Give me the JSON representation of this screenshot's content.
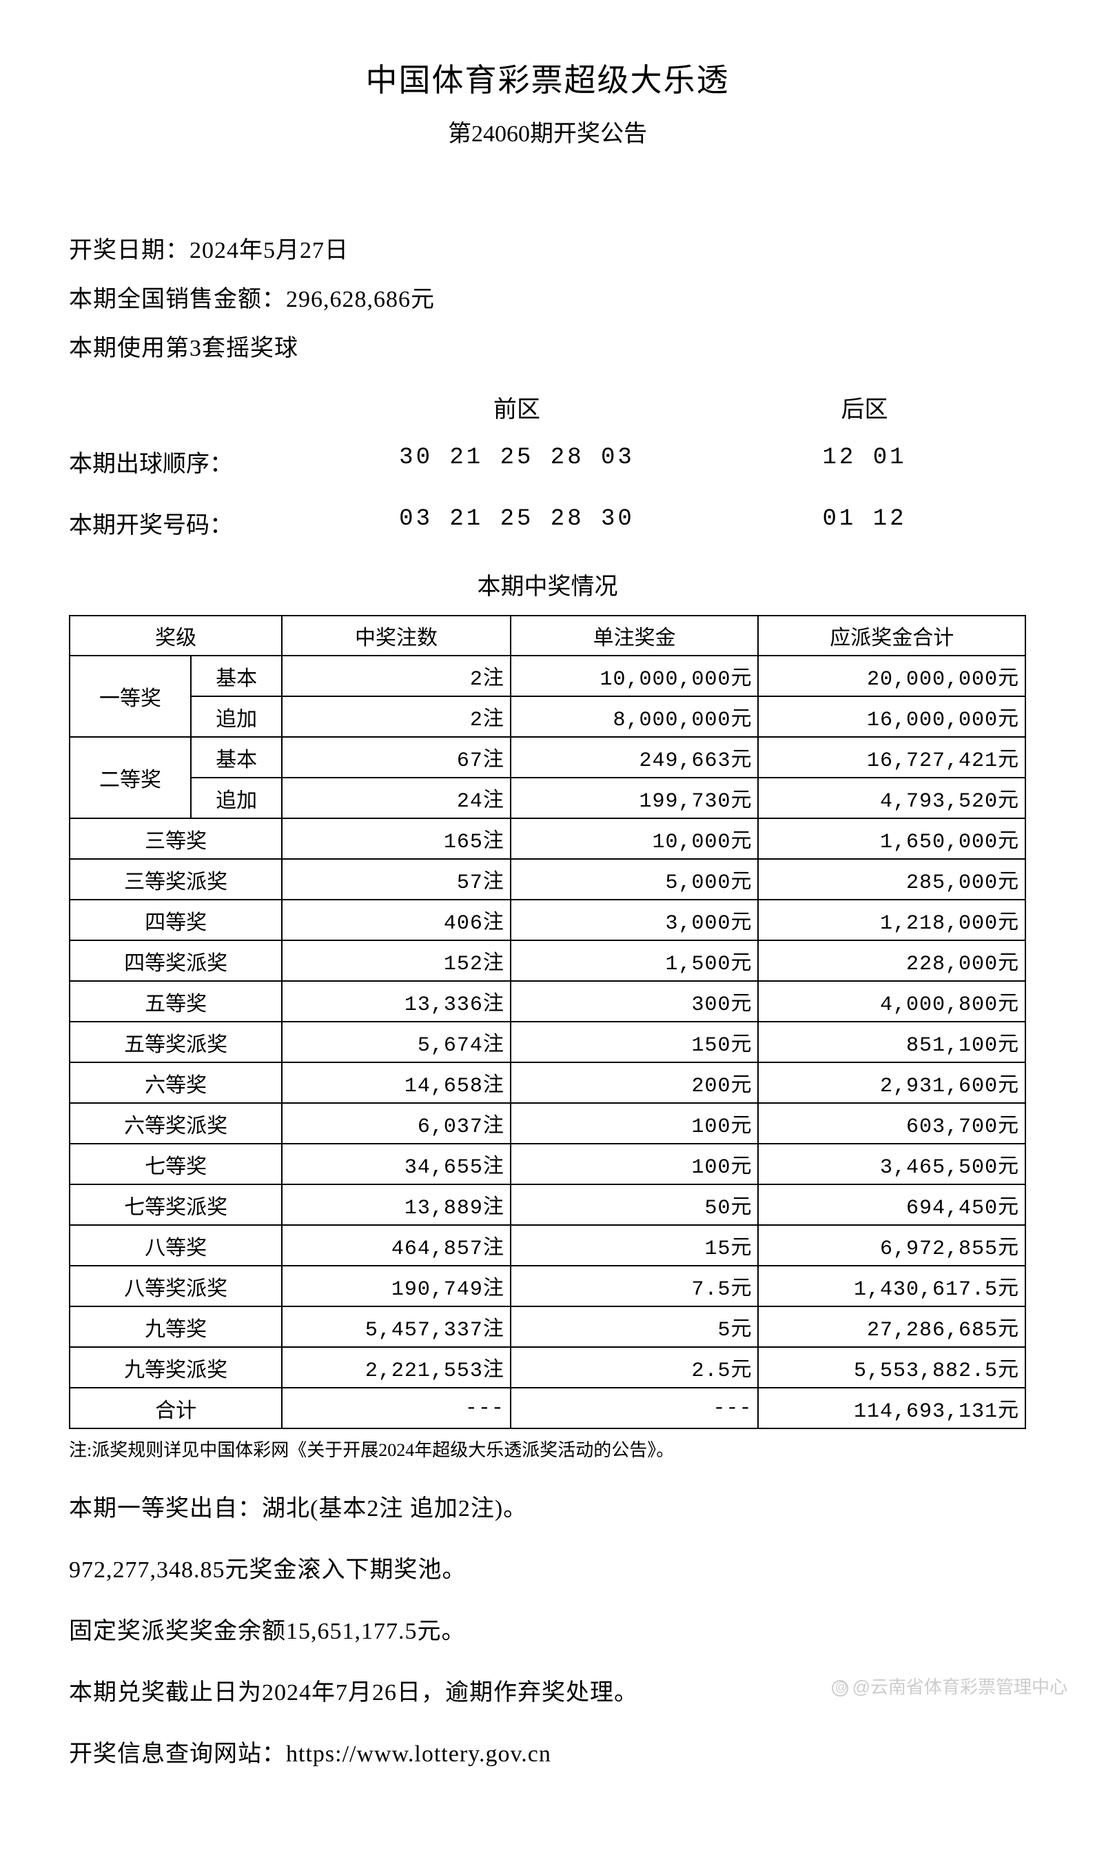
{
  "header": {
    "title": "中国体育彩票超级大乐透",
    "subtitle": "第24060期开奖公告"
  },
  "info": {
    "draw_date_label": "开奖日期：",
    "draw_date": "2024年5月27日",
    "sales_label": "本期全国销售金额：",
    "sales_amount": "296,628,686元",
    "ball_set_label": "本期使用第3套摇奖球"
  },
  "numbers": {
    "front_label": "前区",
    "back_label": "后区",
    "draw_order_label": "本期出球顺序：",
    "draw_order_front": "30 21 25 28 03",
    "draw_order_back": "12 01",
    "winning_label": "本期开奖号码：",
    "winning_front": "03 21 25 28 30",
    "winning_back": "01 12"
  },
  "table": {
    "title": "本期中奖情况",
    "columns": [
      "奖级",
      "中奖注数",
      "单注奖金",
      "应派奖金合计"
    ],
    "rows": [
      {
        "level": "一等奖",
        "sub": "基本",
        "count": "2注",
        "per": "10,000,000元",
        "total": "20,000,000元"
      },
      {
        "level": "",
        "sub": "追加",
        "count": "2注",
        "per": "8,000,000元",
        "total": "16,000,000元"
      },
      {
        "level": "二等奖",
        "sub": "基本",
        "count": "67注",
        "per": "249,663元",
        "total": "16,727,421元"
      },
      {
        "level": "",
        "sub": "追加",
        "count": "24注",
        "per": "199,730元",
        "total": "4,793,520元"
      },
      {
        "level": "三等奖",
        "count": "165注",
        "per": "10,000元",
        "total": "1,650,000元"
      },
      {
        "level": "三等奖派奖",
        "count": "57注",
        "per": "5,000元",
        "total": "285,000元"
      },
      {
        "level": "四等奖",
        "count": "406注",
        "per": "3,000元",
        "total": "1,218,000元"
      },
      {
        "level": "四等奖派奖",
        "count": "152注",
        "per": "1,500元",
        "total": "228,000元"
      },
      {
        "level": "五等奖",
        "count": "13,336注",
        "per": "300元",
        "total": "4,000,800元"
      },
      {
        "level": "五等奖派奖",
        "count": "5,674注",
        "per": "150元",
        "total": "851,100元"
      },
      {
        "level": "六等奖",
        "count": "14,658注",
        "per": "200元",
        "total": "2,931,600元"
      },
      {
        "level": "六等奖派奖",
        "count": "6,037注",
        "per": "100元",
        "total": "603,700元"
      },
      {
        "level": "七等奖",
        "count": "34,655注",
        "per": "100元",
        "total": "3,465,500元"
      },
      {
        "level": "七等奖派奖",
        "count": "13,889注",
        "per": "50元",
        "total": "694,450元"
      },
      {
        "level": "八等奖",
        "count": "464,857注",
        "per": "15元",
        "total": "6,972,855元"
      },
      {
        "level": "八等奖派奖",
        "count": "190,749注",
        "per": "7.5元",
        "total": "1,430,617.5元"
      },
      {
        "level": "九等奖",
        "count": "5,457,337注",
        "per": "5元",
        "total": "27,286,685元"
      },
      {
        "level": "九等奖派奖",
        "count": "2,221,553注",
        "per": "2.5元",
        "total": "5,553,882.5元"
      },
      {
        "level": "合计",
        "count": "---",
        "per": "---",
        "total": "114,693,131元"
      }
    ]
  },
  "note": "注:派奖规则详见中国体彩网《关于开展2024年超级大乐透派奖活动的公告》。",
  "footer": {
    "origin": "本期一等奖出自：湖北(基本2注 追加2注)。",
    "rollover": "972,277,348.85元奖金滚入下期奖池。",
    "fixed_balance": "固定奖派奖奖金余额15,651,177.5元。",
    "deadline": "本期兑奖截止日为2024年7月26日，逾期作弃奖处理。",
    "website_label": "开奖信息查询网站：",
    "website": "https://www.lottery.gov.cn"
  },
  "watermark": "@云南省体育彩票管理中心",
  "styles": {
    "background_color": "#ffffff",
    "text_color": "#000000",
    "border_color": "#000000",
    "watermark_color": "#cccccc",
    "title_fontsize": 46,
    "body_fontsize": 34,
    "table_fontsize": 30,
    "note_fontsize": 26
  }
}
